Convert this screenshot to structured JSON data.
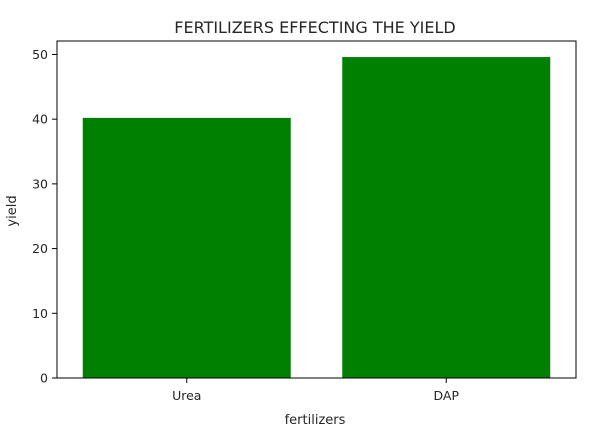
{
  "chart_data": {
    "type": "bar",
    "title": "FERTILIZERS EFFECTING THE YIELD",
    "xlabel": "fertilizers",
    "ylabel": "yield",
    "categories": [
      "Urea",
      "DAP"
    ],
    "values": [
      40.2,
      49.6
    ],
    "ylim": [
      0,
      52.08
    ],
    "yticks": [
      0,
      10,
      20,
      30,
      40,
      50
    ],
    "grid": false,
    "bar_color": "#008000"
  }
}
